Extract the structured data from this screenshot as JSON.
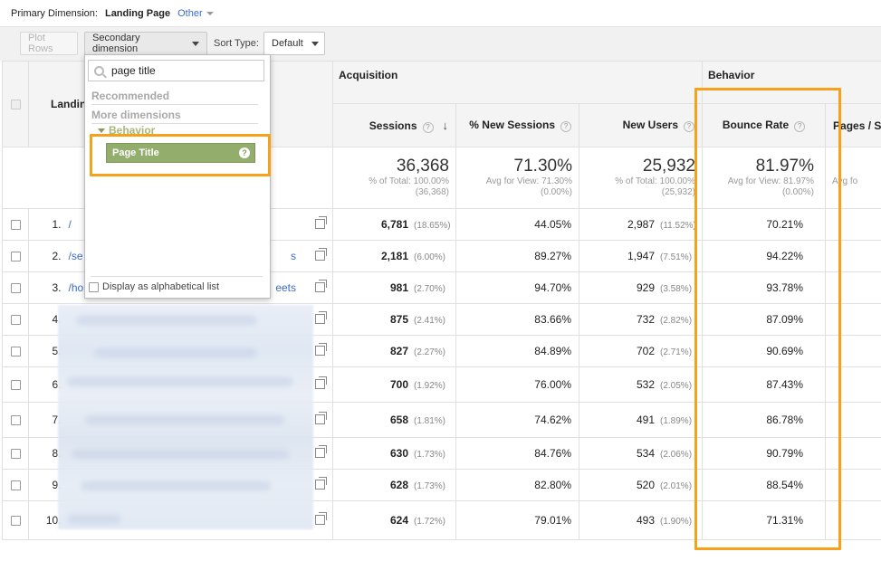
{
  "primary_dimension": {
    "label": "Primary Dimension:",
    "active": "Landing Page",
    "other": "Other"
  },
  "toolbar": {
    "plot_rows": "Plot Rows",
    "secondary_dimension": "Secondary dimension",
    "sort_type_label": "Sort Type:",
    "sort_type_value": "Default"
  },
  "dropdown": {
    "search_value": "page title",
    "recommended": "Recommended",
    "more_dimensions": "More dimensions",
    "group": "Behavior",
    "item": "Page Title",
    "help": "?",
    "alphabetical": "Display as alphabetical list"
  },
  "table": {
    "groups": {
      "landing": "Landing Page",
      "acquisition": "Acquisition",
      "behavior": "Behavior"
    },
    "columns": {
      "sessions": "Sessions",
      "new_sessions": "% New Sessions",
      "new_users": "New Users",
      "bounce_rate": "Bounce Rate",
      "pages_session": "Pages / Session"
    },
    "summary": {
      "sessions": {
        "value": "36,368",
        "line1": "% of Total: 100.00%",
        "line2": "(36,368)"
      },
      "new_sessions": {
        "value": "71.30%",
        "line1": "Avg for View: 71.30%",
        "line2": "(0.00%)"
      },
      "new_users": {
        "value": "25,932",
        "line1": "% of Total: 100.00%",
        "line2": "(25,932)"
      },
      "bounce_rate": {
        "value": "81.97%",
        "line1": "Avg for View: 81.97%",
        "line2": "(0.00%)"
      },
      "pages_session": {
        "line1": "Avg fo"
      }
    },
    "rows": [
      {
        "idx": "1.",
        "page": "/",
        "sessions": "6,781",
        "sessions_pct": "(18.65%)",
        "new_sessions": "44.05%",
        "new_users": "2,987",
        "new_users_pct": "(11.52%)",
        "bounce": "70.21%"
      },
      {
        "idx": "2.",
        "page": "/se",
        "page_tail": "s",
        "sessions": "2,181",
        "sessions_pct": "(6.00%)",
        "new_sessions": "89.27%",
        "new_users": "1,947",
        "new_users_pct": "(7.51%)",
        "bounce": "94.22%"
      },
      {
        "idx": "3.",
        "page": "/ho",
        "page_tail": "eets",
        "sessions": "981",
        "sessions_pct": "(2.70%)",
        "new_sessions": "94.70%",
        "new_users": "929",
        "new_users_pct": "(3.58%)",
        "bounce": "93.78%"
      },
      {
        "idx": "4.",
        "page": "",
        "sessions": "875",
        "sessions_pct": "(2.41%)",
        "new_sessions": "83.66%",
        "new_users": "732",
        "new_users_pct": "(2.82%)",
        "bounce": "87.09%"
      },
      {
        "idx": "5.",
        "page": "",
        "sessions": "827",
        "sessions_pct": "(2.27%)",
        "new_sessions": "84.89%",
        "new_users": "702",
        "new_users_pct": "(2.71%)",
        "bounce": "90.69%"
      },
      {
        "idx": "6.",
        "page": "",
        "sessions": "700",
        "sessions_pct": "(1.92%)",
        "new_sessions": "76.00%",
        "new_users": "532",
        "new_users_pct": "(2.05%)",
        "bounce": "87.43%"
      },
      {
        "idx": "7.",
        "page": "",
        "sessions": "658",
        "sessions_pct": "(1.81%)",
        "new_sessions": "74.62%",
        "new_users": "491",
        "new_users_pct": "(1.89%)",
        "bounce": "86.78%"
      },
      {
        "idx": "8.",
        "page": "",
        "sessions": "630",
        "sessions_pct": "(1.73%)",
        "new_sessions": "84.76%",
        "new_users": "534",
        "new_users_pct": "(2.06%)",
        "bounce": "90.79%"
      },
      {
        "idx": "9.",
        "page": "",
        "sessions": "628",
        "sessions_pct": "(1.73%)",
        "new_sessions": "82.80%",
        "new_users": "520",
        "new_users_pct": "(2.01%)",
        "bounce": "88.54%"
      },
      {
        "idx": "10.",
        "page": "",
        "sessions": "624",
        "sessions_pct": "(1.72%)",
        "new_sessions": "79.01%",
        "new_users": "493",
        "new_users_pct": "(1.90%)",
        "bounce": "71.31%"
      }
    ]
  },
  "colors": {
    "highlight": "#f7a11a",
    "link": "#3a6cc9",
    "dimension_green": "#93ad6d"
  }
}
